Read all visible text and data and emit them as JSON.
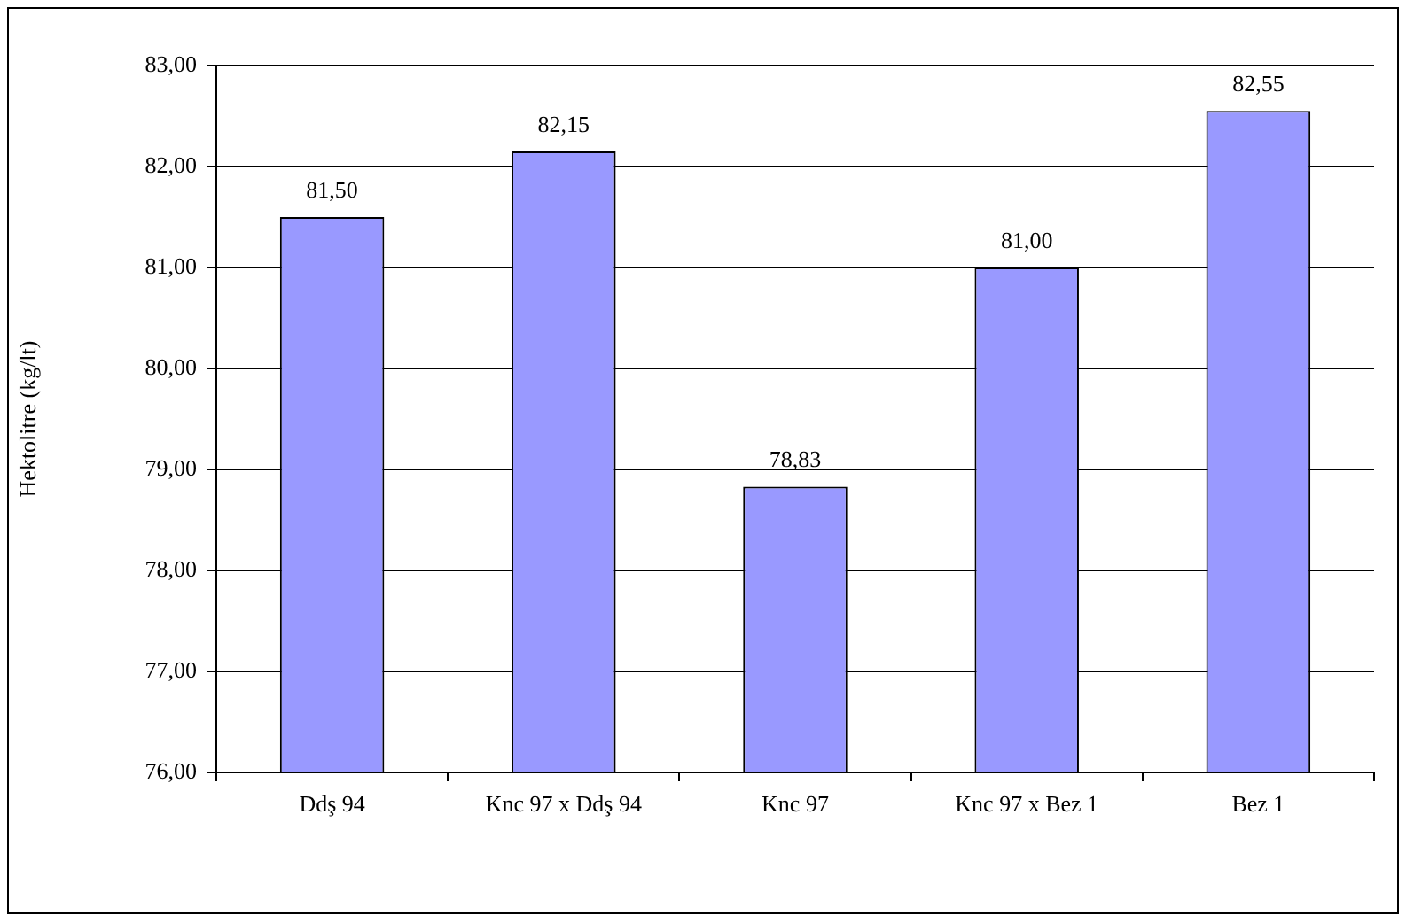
{
  "chart_data": {
    "type": "bar",
    "ylabel": "Hektolitre (kg/lt)",
    "categories": [
      "Ddş 94",
      "Knc 97 x Ddş 94",
      "Knc 97",
      "Knc 97 x Bez 1",
      "Bez 1"
    ],
    "values": [
      81.5,
      82.15,
      78.83,
      81,
      82.55
    ],
    "value_labels": [
      "81,50",
      "82,15",
      "78,83",
      "81,00",
      "82,55"
    ],
    "color": "#9999ff",
    "ylim": [
      76,
      83
    ],
    "yticks": [
      {
        "value": 76,
        "label": "76,00"
      },
      {
        "value": 77,
        "label": "77,00"
      },
      {
        "value": 78,
        "label": "78,00"
      },
      {
        "value": 79,
        "label": "79,00"
      },
      {
        "value": 80,
        "label": "80,00"
      },
      {
        "value": 81,
        "label": "81,00"
      },
      {
        "value": 82,
        "label": "82,00"
      },
      {
        "value": 83,
        "label": "83,00"
      }
    ],
    "grid": "y",
    "legend": false
  }
}
